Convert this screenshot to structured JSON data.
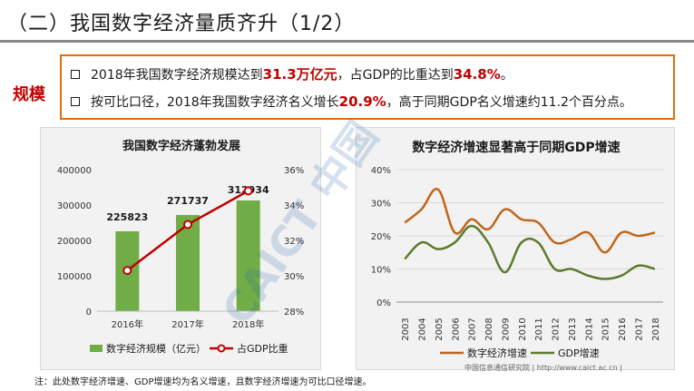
{
  "header": {
    "title": "（二）我国数字经济量质齐升（1/2）"
  },
  "side_label": "规模",
  "summary": {
    "line1": {
      "a": "2018年我国数字经济规模达到",
      "b": "31.3万亿元",
      "c": "，占GDP的比重达到",
      "d": "34.8%",
      "e": "。"
    },
    "line2": {
      "a": "按可比口径，2018年我国数字经济名义增长",
      "b": "20.9%",
      "c": "，高于同期GDP名义增速约11.2个百分点。"
    }
  },
  "colors": {
    "accent_red": "#c00000",
    "box_border": "#e46c0a",
    "bar_green": "#70ad47",
    "line_red": "#c00000",
    "growth_brown": "#c0651b",
    "growth_green": "#5c7a2e"
  },
  "watermark": {
    "text": "CAICT 中国信通院"
  },
  "chart_data": [
    {
      "type": "bar",
      "title": "我国数字经济蓬勃发展",
      "categories": [
        "2016年",
        "2017年",
        "2018年"
      ],
      "series": [
        {
          "name": "数字经济规模（亿元）",
          "type": "bar",
          "axis": "left",
          "values": [
            225823,
            271737,
            312934
          ]
        },
        {
          "name": "占GDP比重",
          "type": "line",
          "axis": "right",
          "values": [
            30.3,
            32.9,
            34.8
          ]
        }
      ],
      "data_labels": [
        "225823",
        "271737",
        "312934"
      ],
      "ylim": [
        0,
        400000
      ],
      "yticks": [
        "0",
        "100000",
        "200000",
        "300000",
        "400000"
      ],
      "y2lim": [
        28,
        36
      ],
      "y2ticks": [
        "28%",
        "30%",
        "32%",
        "34%",
        "36%"
      ],
      "legend": "bottom"
    },
    {
      "type": "line",
      "title": "数字经济增速显著高于同期GDP增速",
      "x": [
        "2003",
        "2004",
        "2005",
        "2006",
        "2007",
        "2008",
        "2009",
        "2010",
        "2011",
        "2012",
        "2013",
        "2014",
        "2015",
        "2016",
        "2017",
        "2018"
      ],
      "series": [
        {
          "name": "数字经济增速",
          "values": [
            24,
            28,
            34,
            21,
            25,
            22,
            28,
            25,
            24,
            18,
            19,
            21,
            15,
            21,
            20,
            21
          ]
        },
        {
          "name": "GDP增速",
          "values": [
            13,
            18,
            16,
            18,
            23,
            18,
            9,
            18,
            18,
            10,
            10,
            8,
            7,
            8,
            11,
            10
          ]
        }
      ],
      "ylim": [
        0,
        40
      ],
      "yticks": [
        "0%",
        "10%",
        "20%",
        "30%",
        "40%"
      ],
      "legend": "bottom"
    }
  ],
  "footnote": "注：此处数字经济增速、GDP增速均为名义增速，且数字经济增速为可比口径增速。",
  "source": "中国信息通信研究院  |  http://www.caict.ac.cn  |"
}
